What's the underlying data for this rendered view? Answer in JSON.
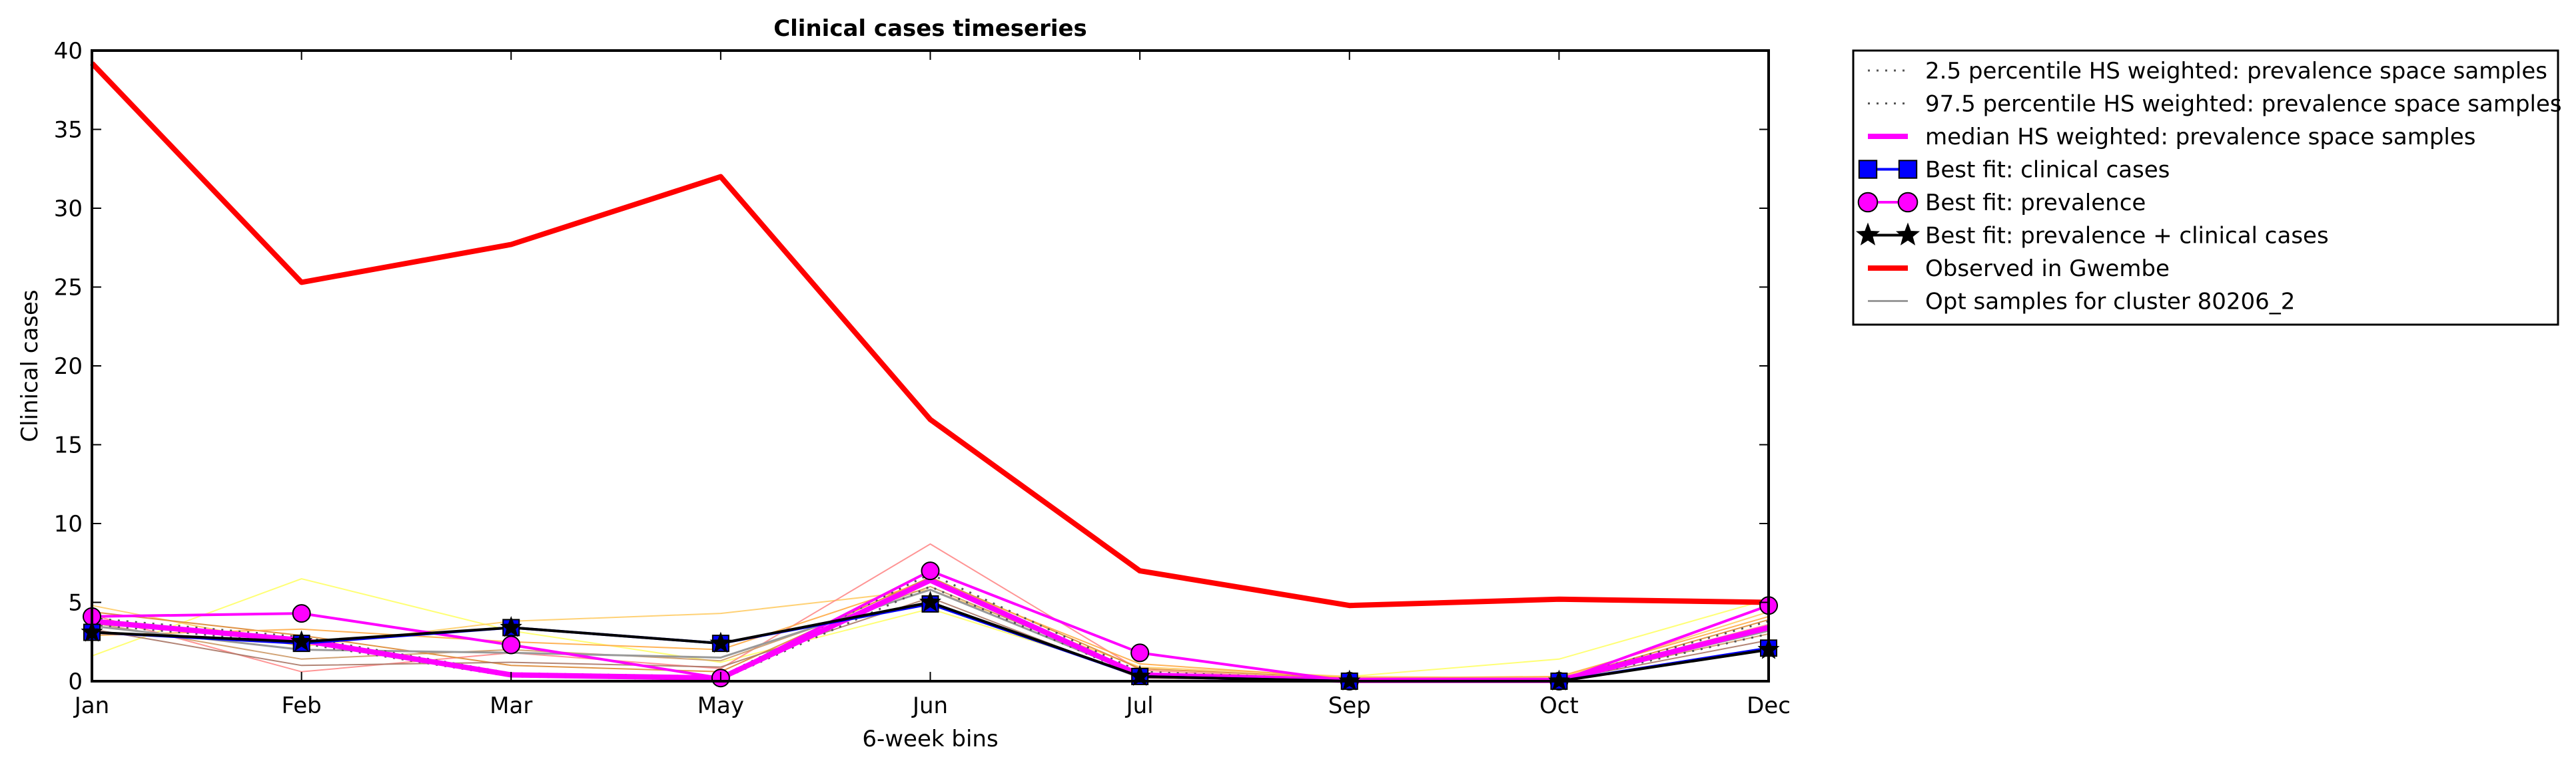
{
  "chart_data": {
    "type": "line",
    "title": "Clinical cases timeseries",
    "xlabel": "6-week bins",
    "ylabel": "Clinical cases",
    "categories": [
      "Jan",
      "Feb",
      "Mar",
      "May",
      "Jun",
      "Jul",
      "Sep",
      "Oct",
      "Dec"
    ],
    "ylim": [
      0,
      40
    ],
    "yticks": [
      0,
      5,
      10,
      15,
      20,
      25,
      30,
      35,
      40
    ],
    "grid": false,
    "legend_position": "outside-right-top",
    "series": [
      {
        "name": "2.5 percentile HS weighted: prevalence space samples",
        "style": "dotted",
        "color": "#555555",
        "values": [
          3.6,
          2.4,
          0.3,
          0.1,
          6.0,
          0.3,
          0.0,
          0.0,
          3.0
        ]
      },
      {
        "name": "97.5 percentile HS weighted: prevalence space samples",
        "style": "dotted",
        "color": "#555555",
        "values": [
          4.0,
          2.8,
          0.5,
          0.3,
          6.8,
          0.6,
          0.1,
          0.1,
          3.8
        ]
      },
      {
        "name": "median HS weighted: prevalence space samples",
        "style": "solid",
        "color": "#ff00ff",
        "values": [
          3.8,
          2.6,
          0.4,
          0.2,
          6.4,
          0.4,
          0.05,
          0.05,
          3.4
        ]
      },
      {
        "name": "Best fit: clinical cases",
        "style": "solid",
        "color": "#0000ff",
        "marker": "square",
        "values": [
          3.1,
          2.4,
          3.4,
          2.4,
          4.9,
          0.3,
          0.0,
          0.0,
          2.1
        ]
      },
      {
        "name": "Best fit: prevalence",
        "style": "solid",
        "color": "#ff00ff",
        "marker": "circle",
        "values": [
          4.1,
          4.3,
          2.3,
          0.2,
          7.0,
          1.8,
          0.0,
          0.0,
          4.8
        ]
      },
      {
        "name": "Best fit: prevalence + clinical cases",
        "style": "solid",
        "color": "#000000",
        "marker": "star",
        "values": [
          3.1,
          2.5,
          3.4,
          2.4,
          5.0,
          0.3,
          0.0,
          0.0,
          2.0
        ]
      },
      {
        "name": "Observed in Gwembe",
        "style": "solid",
        "color": "#ff0000",
        "values": [
          39.2,
          25.3,
          27.7,
          32.0,
          16.6,
          7.0,
          4.8,
          5.2,
          5.0
        ]
      },
      {
        "name": "Opt samples for cluster 80206_2",
        "style": "solid",
        "color": "#999999",
        "values": [
          3.5,
          2.0,
          1.8,
          1.5,
          5.8,
          0.4,
          0.1,
          0.1,
          3.2
        ]
      }
    ],
    "extra_lines": [
      {
        "color": "#ffff66",
        "values": [
          1.6,
          6.5,
          3.2,
          1.2,
          4.6,
          0.4,
          0.3,
          1.4,
          5.2
        ]
      },
      {
        "color": "#ffcc66",
        "values": [
          4.8,
          2.2,
          3.8,
          4.3,
          5.8,
          0.9,
          0.3,
          0.2,
          4.4
        ]
      },
      {
        "color": "#ff8888",
        "values": [
          4.2,
          0.6,
          1.8,
          0.8,
          8.7,
          0.7,
          0.1,
          0.1,
          3.6
        ]
      },
      {
        "color": "#cc9966",
        "values": [
          3.7,
          1.4,
          2.0,
          1.3,
          6.0,
          0.5,
          0.1,
          0.1,
          3.0
        ]
      },
      {
        "color": "#dd8833",
        "values": [
          4.4,
          2.9,
          1.0,
          0.6,
          6.6,
          0.8,
          0.2,
          0.1,
          3.9
        ]
      },
      {
        "color": "#aa7766",
        "values": [
          3.3,
          1.0,
          1.2,
          0.9,
          5.3,
          0.2,
          0.05,
          0.05,
          2.6
        ]
      },
      {
        "color": "#ffaa44",
        "values": [
          2.9,
          3.3,
          2.5,
          2.0,
          6.4,
          1.1,
          0.2,
          0.3,
          4.1
        ]
      }
    ]
  }
}
